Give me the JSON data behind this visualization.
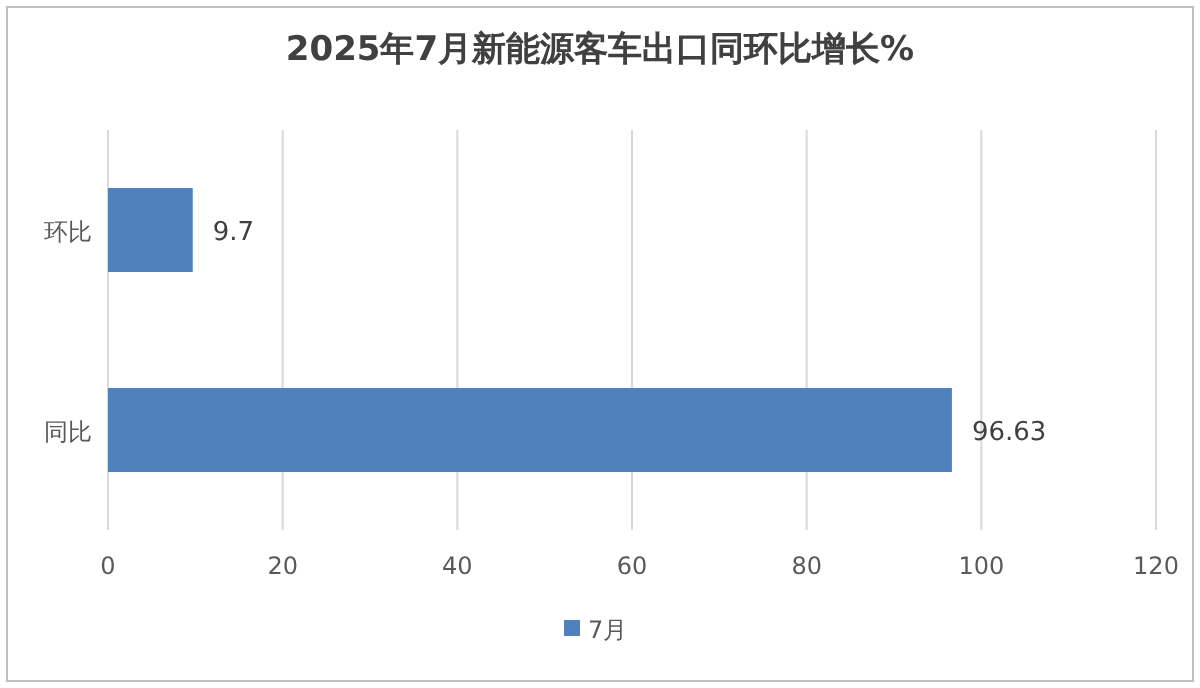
{
  "chart_data": {
    "type": "bar",
    "orientation": "horizontal",
    "title": "2025年7月新能源客车出口同环比增长%",
    "categories": [
      "环比",
      "同比"
    ],
    "series": [
      {
        "name": "7月",
        "color": "#4f81bd",
        "values": [
          9.7,
          96.63
        ]
      }
    ],
    "xlim": [
      0,
      120
    ],
    "xticks": [
      0,
      20,
      40,
      60,
      80,
      100,
      120
    ],
    "grid": "x",
    "legend": "bottom",
    "data_labels": true
  }
}
